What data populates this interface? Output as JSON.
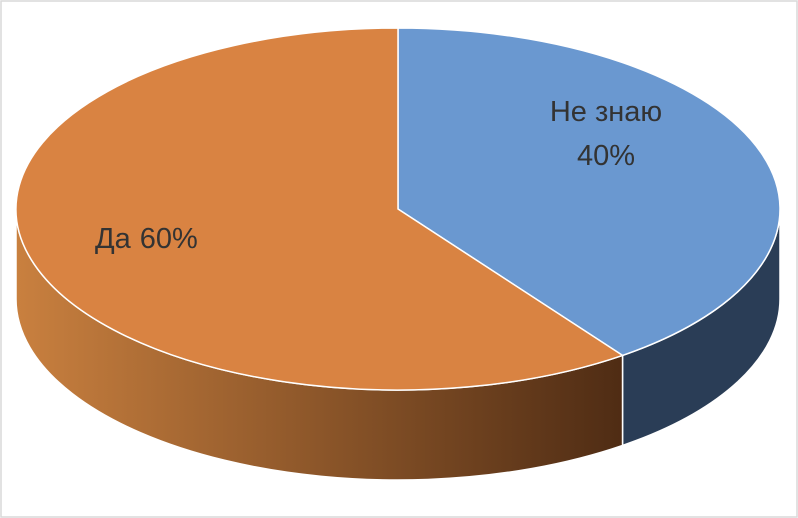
{
  "chart_data": {
    "type": "pie",
    "categories": [
      "Не знаю",
      "Да"
    ],
    "values": [
      40,
      60
    ],
    "value_labels": [
      "40%",
      "60%"
    ],
    "colors": [
      "#6a98d0",
      "#d98342"
    ]
  }
}
